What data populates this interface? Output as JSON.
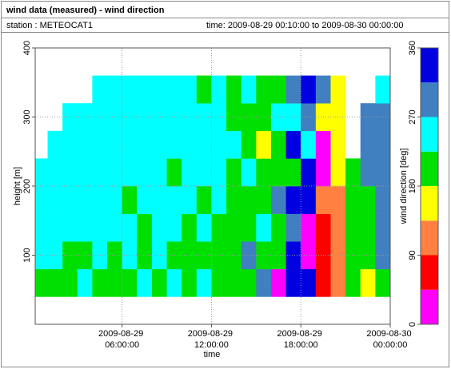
{
  "chart_data": {
    "type": "heatmap",
    "title": "wind data (measured) - wind direction",
    "station": "station : METEOCAT1",
    "time_range": "time: 2009-08-29 00:10:00 to 2009-08-30 00:00:00",
    "xlabel": "time",
    "ylabel": "height [m]",
    "xlim": [
      "2009-08-29 00:10:00",
      "2009-08-30 00:00:00"
    ],
    "xticks": [
      "2009-08-29 06:00:00",
      "2009-08-29 12:00:00",
      "2009-08-29 18:00:00",
      "2009-08-30 00:00:00"
    ],
    "ylim": [
      0,
      400
    ],
    "yticks": [
      100,
      200,
      300,
      400
    ],
    "grid": true,
    "x_bins": [
      "2009-08-29 00:10:00",
      "2009-08-29 01:00:00",
      "2009-08-29 02:00:00",
      "2009-08-29 03:00:00",
      "2009-08-29 04:00:00",
      "2009-08-29 05:00:00",
      "2009-08-29 06:00:00",
      "2009-08-29 07:00:00",
      "2009-08-29 08:00:00",
      "2009-08-29 09:00:00",
      "2009-08-29 10:00:00",
      "2009-08-29 11:00:00",
      "2009-08-29 12:00:00",
      "2009-08-29 13:00:00",
      "2009-08-29 14:00:00",
      "2009-08-29 15:00:00",
      "2009-08-29 16:00:00",
      "2009-08-29 17:00:00",
      "2009-08-29 18:00:00",
      "2009-08-29 19:00:00",
      "2009-08-29 20:00:00",
      "2009-08-29 21:00:00",
      "2009-08-29 22:00:00",
      "2009-08-29 23:00:00",
      "2009-08-30 00:00:00"
    ],
    "y_bins": [
      40,
      80,
      120,
      160,
      200,
      240,
      280,
      320,
      360
    ],
    "values": [
      [
        200,
        200,
        200,
        250,
        200,
        200,
        200,
        250,
        200,
        250,
        200,
        250,
        200,
        200,
        200,
        290,
        20,
        340,
        340,
        70,
        110,
        200,
        160,
        200
      ],
      [
        250,
        250,
        200,
        200,
        250,
        200,
        250,
        200,
        250,
        200,
        200,
        200,
        200,
        200,
        290,
        200,
        200,
        340,
        20,
        70,
        110,
        200,
        200,
        290
      ],
      [
        250,
        250,
        250,
        250,
        250,
        250,
        250,
        200,
        250,
        250,
        200,
        250,
        200,
        200,
        200,
        250,
        200,
        290,
        20,
        70,
        110,
        200,
        200,
        290
      ],
      [
        250,
        250,
        250,
        250,
        250,
        250,
        200,
        250,
        250,
        250,
        250,
        200,
        250,
        200,
        200,
        200,
        290,
        340,
        340,
        110,
        110,
        200,
        200,
        290
      ],
      [
        250,
        250,
        250,
        250,
        250,
        250,
        250,
        250,
        250,
        200,
        250,
        250,
        250,
        200,
        250,
        200,
        200,
        200,
        340,
        20,
        160,
        200,
        290,
        290
      ],
      [
        null,
        250,
        250,
        250,
        250,
        250,
        250,
        250,
        250,
        250,
        250,
        250,
        250,
        250,
        200,
        160,
        200,
        340,
        250,
        20,
        160,
        null,
        290,
        290
      ],
      [
        null,
        null,
        250,
        250,
        250,
        250,
        250,
        250,
        250,
        250,
        250,
        250,
        250,
        200,
        200,
        200,
        250,
        250,
        290,
        160,
        160,
        null,
        290,
        290
      ],
      [
        null,
        null,
        null,
        null,
        250,
        250,
        250,
        250,
        250,
        250,
        250,
        200,
        250,
        200,
        250,
        200,
        200,
        290,
        340,
        290,
        160,
        null,
        null,
        250
      ]
    ],
    "colorbar": {
      "label": "wind direction [deg]",
      "bounds": [
        0,
        45,
        90,
        135,
        180,
        225,
        270,
        315,
        360
      ],
      "colors": [
        "#ff00ff",
        "#ff0000",
        "#ff8040",
        "#ffff00",
        "#00e000",
        "#00ffff",
        "#4080c0",
        "#0000e0"
      ],
      "ticks": [
        0,
        90,
        180,
        270,
        360
      ]
    }
  }
}
